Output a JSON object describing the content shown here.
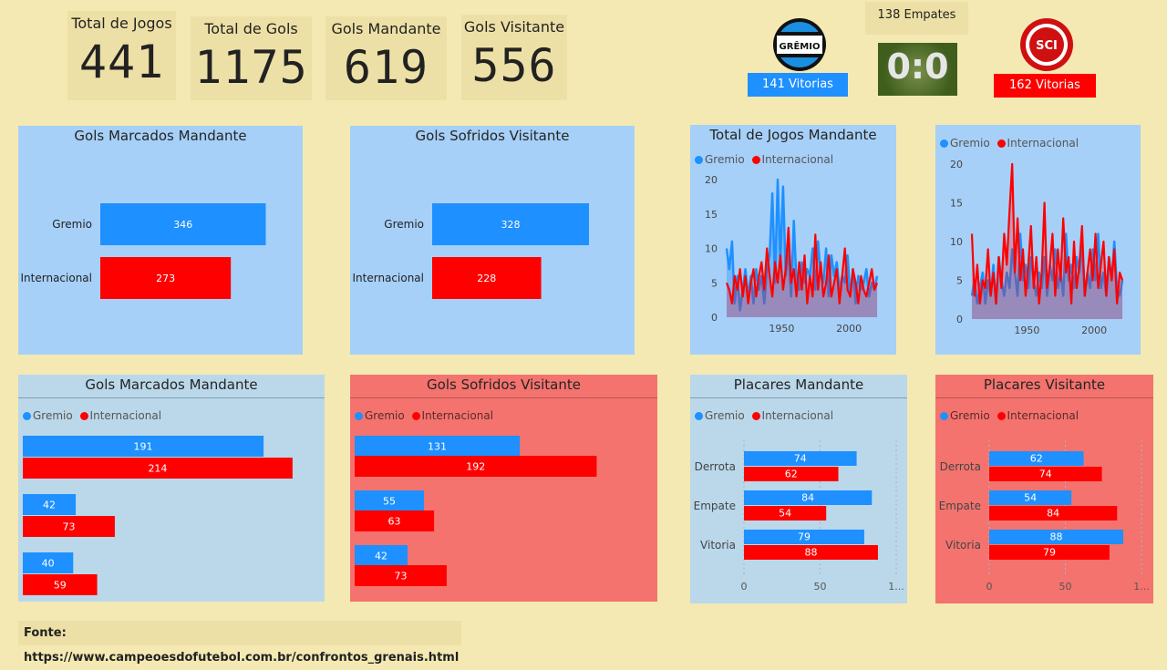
{
  "colors": {
    "gremio": "#1e90ff",
    "inter": "#ff0000",
    "panel_blue": "#a6d0f8",
    "panel_light": "#bad8ea",
    "panel_red": "#f4736e",
    "bg": "#f4e9b3"
  },
  "kpis": [
    {
      "label": "Total de Jogos",
      "value": "441"
    },
    {
      "label": "Total de Gols",
      "value": "1175"
    },
    {
      "label": "Gols Mandante",
      "value": "619"
    },
    {
      "label": "Gols Visitante",
      "value": "556"
    }
  ],
  "summary": {
    "empates": "138 Empates",
    "score_image_text": "0:0",
    "gremio_wins": "141 Vitorias",
    "inter_wins": "162 Vitorias",
    "gremio_logo_text": "GRÊMIO",
    "inter_logo_text": "SCI"
  },
  "footer": "Fonte: https://www.campeoesdofutebol.com.br/confrontos_grenais.html",
  "legend": {
    "gremio": "Gremio",
    "inter": "Internacional"
  },
  "chart_data": [
    {
      "id": "c1",
      "type": "bar",
      "title": "Gols Marcados Mandante",
      "categories": [
        "Gremio",
        "Internacional"
      ],
      "values": [
        346,
        273
      ],
      "xlim": [
        0,
        450
      ]
    },
    {
      "id": "c2",
      "type": "bar",
      "title": "Gols Sofridos Visitante",
      "categories": [
        "Gremio",
        "Internacional"
      ],
      "values": [
        328,
        228
      ],
      "xlim": [
        0,
        450
      ]
    },
    {
      "id": "c3",
      "type": "area",
      "title": "Total de Jogos Mandante",
      "ylim": [
        0,
        20
      ],
      "yticks": [
        0,
        5,
        10,
        15,
        20
      ],
      "xticks": [
        1950,
        2000
      ],
      "xlim": [
        1909,
        2023
      ],
      "series": [
        {
          "name": "Gremio",
          "x": [
            1909,
            1911,
            1913,
            1915,
            1917,
            1919,
            1921,
            1923,
            1925,
            1927,
            1929,
            1931,
            1933,
            1935,
            1937,
            1939,
            1941,
            1943,
            1945,
            1947,
            1949,
            1951,
            1953,
            1955,
            1957,
            1959,
            1961,
            1963,
            1965,
            1967,
            1969,
            1971,
            1973,
            1975,
            1977,
            1979,
            1981,
            1983,
            1985,
            1987,
            1989,
            1991,
            1993,
            1995,
            1997,
            1999,
            2001,
            2003,
            2005,
            2007,
            2009,
            2011,
            2013,
            2015,
            2017,
            2019,
            2021
          ],
          "y": [
            10,
            7,
            11,
            2,
            6,
            1,
            4,
            7,
            3,
            6,
            2,
            7,
            4,
            6,
            2,
            7,
            9,
            18,
            5,
            20,
            8,
            19,
            6,
            10,
            3,
            14,
            5,
            4,
            8,
            5,
            7,
            6,
            10,
            4,
            11,
            6,
            5,
            10,
            3,
            9,
            6,
            8,
            4,
            6,
            5,
            9,
            3,
            7,
            2,
            6,
            4,
            5,
            7,
            3,
            5,
            4,
            6
          ]
        },
        {
          "name": "Internacional",
          "x": [
            1909,
            1911,
            1913,
            1915,
            1917,
            1919,
            1921,
            1923,
            1925,
            1927,
            1929,
            1931,
            1933,
            1935,
            1937,
            1939,
            1941,
            1943,
            1945,
            1947,
            1949,
            1951,
            1953,
            1955,
            1957,
            1959,
            1961,
            1963,
            1965,
            1967,
            1969,
            1971,
            1973,
            1975,
            1977,
            1979,
            1981,
            1983,
            1985,
            1987,
            1989,
            1991,
            1993,
            1995,
            1997,
            1999,
            2001,
            2003,
            2005,
            2007,
            2009,
            2011,
            2013,
            2015,
            2017,
            2019,
            2021
          ],
          "y": [
            5,
            4,
            2,
            6,
            4,
            7,
            3,
            6,
            2,
            5,
            7,
            3,
            6,
            8,
            4,
            10,
            6,
            3,
            8,
            5,
            9,
            4,
            7,
            13,
            5,
            7,
            3,
            8,
            4,
            9,
            2,
            6,
            3,
            12,
            4,
            8,
            3,
            5,
            9,
            3,
            5,
            7,
            2,
            6,
            10,
            4,
            3,
            7,
            5,
            2,
            6,
            4,
            3,
            5,
            7,
            4,
            5
          ]
        }
      ]
    },
    {
      "id": "c4",
      "type": "area",
      "title": "",
      "ylim": [
        0,
        20
      ],
      "yticks": [
        0,
        5,
        10,
        15,
        20
      ],
      "xticks": [
        1950,
        2000
      ],
      "xlim": [
        1909,
        2023
      ],
      "series": [
        {
          "name": "Gremio",
          "x": [
            1909,
            1911,
            1913,
            1915,
            1917,
            1919,
            1921,
            1923,
            1925,
            1927,
            1929,
            1931,
            1933,
            1935,
            1937,
            1939,
            1941,
            1943,
            1945,
            1947,
            1949,
            1951,
            1953,
            1955,
            1957,
            1959,
            1961,
            1963,
            1965,
            1967,
            1969,
            1971,
            1973,
            1975,
            1977,
            1979,
            1981,
            1983,
            1985,
            1987,
            1989,
            1991,
            1993,
            1995,
            1997,
            1999,
            2001,
            2003,
            2005,
            2007,
            2009,
            2011,
            2013,
            2015,
            2017,
            2019,
            2021
          ],
          "y": [
            3,
            5,
            2,
            4,
            6,
            2,
            5,
            3,
            7,
            2,
            8,
            5,
            3,
            6,
            4,
            9,
            6,
            3,
            11,
            5,
            7,
            4,
            8,
            5,
            3,
            6,
            4,
            8,
            3,
            7,
            5,
            9,
            4,
            6,
            3,
            11,
            5,
            7,
            4,
            8,
            6,
            10,
            3,
            6,
            4,
            9,
            5,
            11,
            4,
            6,
            3,
            8,
            5,
            10,
            4,
            3,
            5
          ]
        },
        {
          "name": "Internacional",
          "x": [
            1909,
            1911,
            1913,
            1915,
            1917,
            1919,
            1921,
            1923,
            1925,
            1927,
            1929,
            1931,
            1933,
            1935,
            1937,
            1939,
            1941,
            1943,
            1945,
            1947,
            1949,
            1951,
            1953,
            1955,
            1957,
            1959,
            1961,
            1963,
            1965,
            1967,
            1969,
            1971,
            1973,
            1975,
            1977,
            1979,
            1981,
            1983,
            1985,
            1987,
            1989,
            1991,
            1993,
            1995,
            1997,
            1999,
            2001,
            2003,
            2005,
            2007,
            2009,
            2011,
            2013,
            2015,
            2017,
            2019,
            2021
          ],
          "y": [
            11,
            3,
            7,
            2,
            5,
            4,
            9,
            3,
            6,
            2,
            8,
            4,
            11,
            7,
            14,
            20,
            6,
            13,
            5,
            9,
            3,
            7,
            12,
            4,
            8,
            2,
            6,
            15,
            4,
            7,
            11,
            3,
            9,
            5,
            13,
            6,
            8,
            2,
            10,
            4,
            7,
            12,
            3,
            6,
            9,
            5,
            11,
            4,
            7,
            10,
            3,
            8,
            5,
            9,
            2,
            6,
            5
          ]
        }
      ]
    },
    {
      "id": "c5",
      "type": "bar",
      "title": "Gols Marcados Mandante",
      "groups": 3,
      "series": [
        {
          "name": "Gremio",
          "values": [
            191,
            42,
            40
          ]
        },
        {
          "name": "Internacional",
          "values": [
            214,
            73,
            59
          ]
        }
      ],
      "xlim": [
        0,
        230
      ]
    },
    {
      "id": "c6",
      "type": "bar",
      "title": "Gols Sofridos Visitante",
      "groups": 3,
      "series": [
        {
          "name": "Gremio",
          "values": [
            131,
            55,
            42
          ]
        },
        {
          "name": "Internacional",
          "values": [
            192,
            63,
            73
          ]
        }
      ],
      "xlim": [
        0,
        230
      ]
    },
    {
      "id": "c7",
      "type": "bar",
      "title": "Placares Mandante",
      "categories": [
        "Derrota",
        "Empate",
        "Vitoria"
      ],
      "series": [
        {
          "name": "Gremio",
          "values": [
            74,
            84,
            79
          ]
        },
        {
          "name": "Internacional",
          "values": [
            62,
            54,
            88
          ]
        }
      ],
      "xlim": [
        0,
        100
      ],
      "xticks": [
        "0",
        "50",
        "1..."
      ]
    },
    {
      "id": "c8",
      "type": "bar",
      "title": "Placares Visitante",
      "categories": [
        "Derrota",
        "Empate",
        "Vitoria"
      ],
      "series": [
        {
          "name": "Gremio",
          "values": [
            62,
            54,
            88
          ]
        },
        {
          "name": "Internacional",
          "values": [
            74,
            84,
            79
          ]
        }
      ],
      "xlim": [
        0,
        100
      ],
      "xticks": [
        "0",
        "50",
        "1..."
      ]
    }
  ]
}
